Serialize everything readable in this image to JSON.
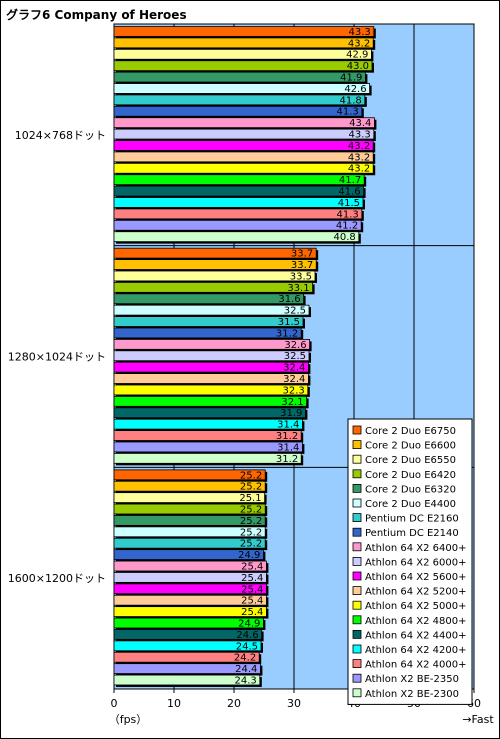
{
  "chart_data": {
    "type": "bar",
    "title": "グラフ6  Company of Heroes",
    "xlabel": "（fps）",
    "x_axis_note": "→Fast",
    "xlim": [
      0,
      60
    ],
    "xticks": [
      0,
      10,
      20,
      30,
      40,
      50,
      60
    ],
    "grid": true,
    "legend_position": "bottom-right",
    "categories": [
      "1024×768ドット",
      "1280×1024ドット",
      "1600×1200ドット"
    ],
    "series": [
      {
        "name": "Core 2 Duo E6750",
        "color": "#FF6600",
        "values": [
          43.3,
          33.7,
          25.2
        ]
      },
      {
        "name": "Core 2 Duo E6600",
        "color": "#FFC000",
        "values": [
          43.2,
          33.7,
          25.2
        ]
      },
      {
        "name": "Core 2 Duo E6550",
        "color": "#FFFF99",
        "values": [
          42.9,
          33.5,
          25.1
        ]
      },
      {
        "name": "Core 2 Duo E6420",
        "color": "#99CC00",
        "values": [
          43.0,
          33.1,
          25.2
        ]
      },
      {
        "name": "Core 2 Duo E6320",
        "color": "#339966",
        "values": [
          41.9,
          31.6,
          25.2
        ]
      },
      {
        "name": "Core 2 Duo E4400",
        "color": "#CCFFFF",
        "values": [
          42.6,
          32.5,
          25.2
        ]
      },
      {
        "name": "Pentium DC E2160",
        "color": "#33CCCC",
        "values": [
          41.8,
          31.5,
          25.2
        ]
      },
      {
        "name": "Pentium DC E2140",
        "color": "#3366CC",
        "values": [
          41.3,
          31.2,
          24.9
        ]
      },
      {
        "name": "Athlon 64 X2 6400+",
        "color": "#FF99CC",
        "values": [
          43.4,
          32.6,
          25.4
        ]
      },
      {
        "name": "Athlon 64 X2 6000+",
        "color": "#CCCCFF",
        "values": [
          43.3,
          32.5,
          25.4
        ]
      },
      {
        "name": "Athlon 64 X2 5600+",
        "color": "#FF00FF",
        "values": [
          43.2,
          32.4,
          25.4
        ]
      },
      {
        "name": "Athlon 64 X2 5200+",
        "color": "#FFCC99",
        "values": [
          43.2,
          32.4,
          25.4
        ]
      },
      {
        "name": "Athlon 64 X2 5000+",
        "color": "#FFFF00",
        "values": [
          43.2,
          32.3,
          25.4
        ]
      },
      {
        "name": "Athlon 64 X2 4800+",
        "color": "#00FF00",
        "values": [
          41.7,
          32.1,
          24.9
        ]
      },
      {
        "name": "Athlon 64 X2 4400+",
        "color": "#006666",
        "values": [
          41.6,
          31.9,
          24.6
        ]
      },
      {
        "name": "Athlon 64 X2 4200+",
        "color": "#00FFFF",
        "values": [
          41.5,
          31.4,
          24.5
        ]
      },
      {
        "name": "Athlon 64 X2 4000+",
        "color": "#FF8080",
        "values": [
          41.3,
          31.2,
          24.2
        ]
      },
      {
        "name": "Athlon X2 BE-2350",
        "color": "#9999FF",
        "values": [
          41.2,
          31.4,
          24.4
        ]
      },
      {
        "name": "Athlon X2 BE-2300",
        "color": "#CCFFCC",
        "values": [
          40.8,
          31.2,
          24.3
        ]
      }
    ],
    "colors": {
      "plot_background": "#99CCFF",
      "grid": "#000000"
    }
  }
}
